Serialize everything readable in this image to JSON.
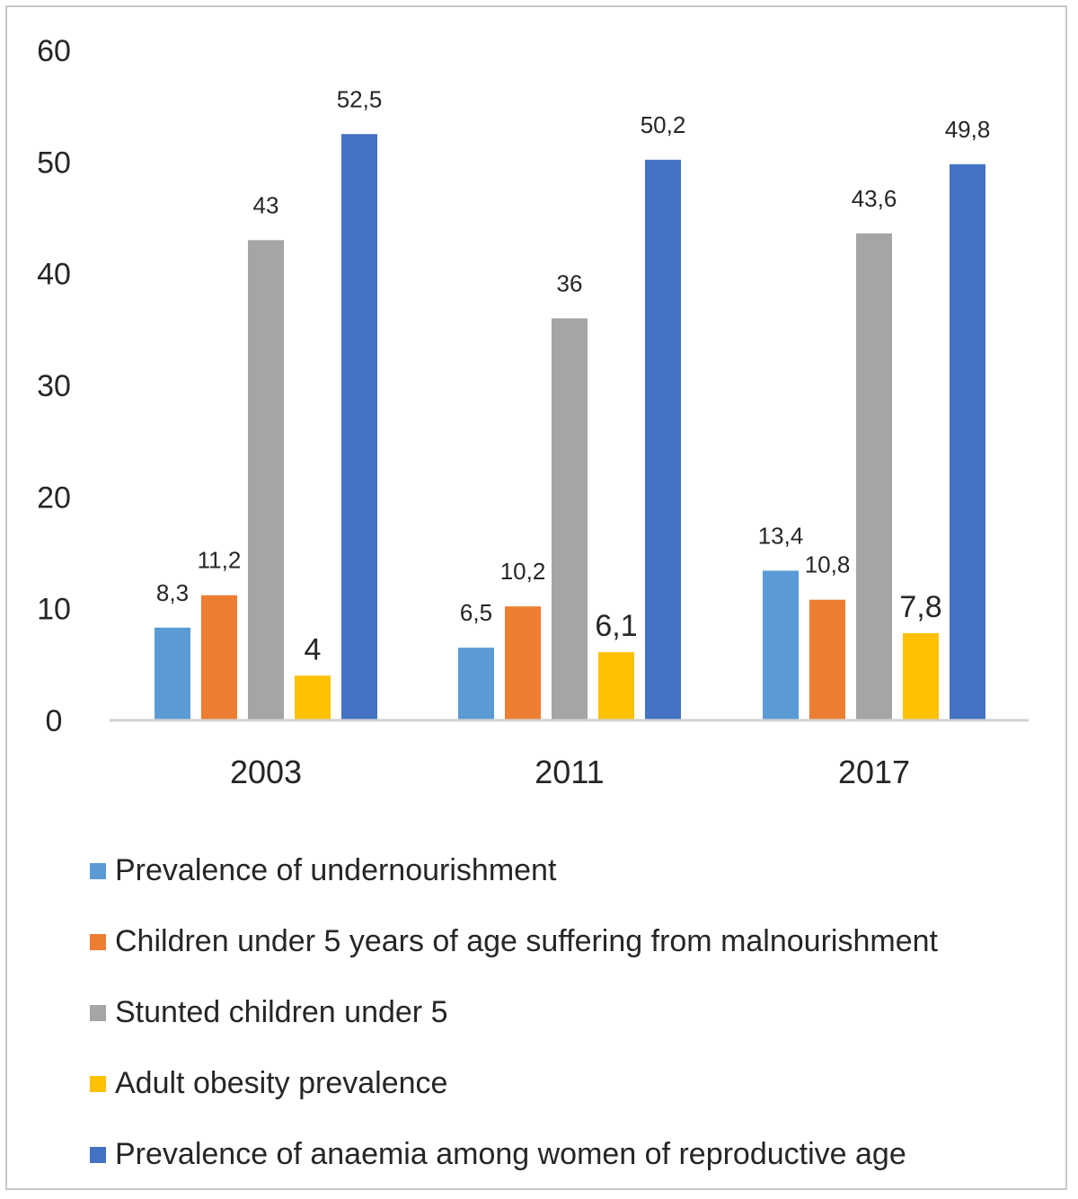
{
  "chart_data": {
    "type": "bar",
    "categories": [
      "2003",
      "2011",
      "2017"
    ],
    "ylim": [
      0,
      60
    ],
    "yticks": [
      "0",
      "10",
      "20",
      "30",
      "40",
      "50",
      "60"
    ],
    "grid": false,
    "legend_position": "bottom",
    "series": [
      {
        "name": "Prevalence of undernourishment",
        "color": "#5B9BD5",
        "values": [
          8.3,
          6.5,
          13.4
        ],
        "labels": [
          "8,3",
          "6,5",
          "13,4"
        ]
      },
      {
        "name": "Children under 5 years of age suffering from malnourishment",
        "color": "#ED7D31",
        "values": [
          11.2,
          10.2,
          10.8
        ],
        "labels": [
          "11,2",
          "10,2",
          "10,8"
        ]
      },
      {
        "name": "Stunted children under 5",
        "color": "#A5A5A5",
        "values": [
          43,
          36,
          43.6
        ],
        "labels": [
          "43",
          "36",
          "43,6"
        ]
      },
      {
        "name": "Adult obesity prevalence",
        "color": "#FFC000",
        "values": [
          4,
          6.1,
          7.8
        ],
        "labels": [
          "4",
          "6,1",
          "7,8"
        ]
      },
      {
        "name": "Prevalence of anaemia among women of reproductive age",
        "color": "#4472C4",
        "values": [
          52.5,
          50.2,
          49.8
        ],
        "labels": [
          "52,5",
          "50,2",
          "49,8"
        ]
      }
    ]
  }
}
